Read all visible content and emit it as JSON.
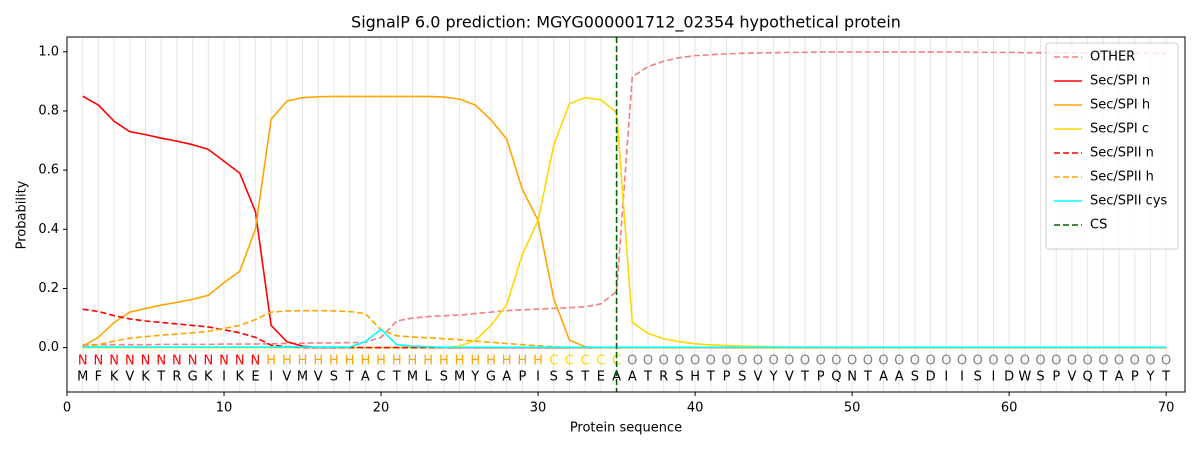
{
  "chart_data": {
    "type": "line",
    "title": "SignalP 6.0 prediction: MGYG000001712_02354 hypothetical protein",
    "xlabel": "Protein sequence",
    "ylabel": "Probability",
    "x": [
      1,
      2,
      3,
      4,
      5,
      6,
      7,
      8,
      9,
      10,
      11,
      12,
      13,
      14,
      15,
      16,
      17,
      18,
      19,
      20,
      21,
      22,
      23,
      24,
      25,
      26,
      27,
      28,
      29,
      30,
      31,
      32,
      33,
      34,
      35,
      36,
      37,
      38,
      39,
      40,
      41,
      42,
      43,
      44,
      45,
      46,
      47,
      48,
      49,
      50,
      51,
      52,
      53,
      54,
      55,
      56,
      57,
      58,
      59,
      60,
      61,
      62,
      63,
      64,
      65,
      66,
      67,
      68,
      69,
      70
    ],
    "xlim": [
      0,
      71.2
    ],
    "ylim": [
      -0.15,
      1.05
    ],
    "xticks": [
      0,
      10,
      20,
      30,
      40,
      50,
      60,
      70
    ],
    "yticks": [
      {
        "value": 0,
        "label": "0.0"
      },
      0.2,
      0.4,
      0.6,
      0.8,
      {
        "value": 1,
        "label": "1.0"
      }
    ],
    "grid": true,
    "legend": "upper right",
    "series": [
      {
        "name": "OTHER",
        "color": "#f08080",
        "style": "dashed",
        "values": [
          0.01,
          0.01,
          0.01,
          0.01,
          0.01,
          0.011,
          0.011,
          0.011,
          0.011,
          0.012,
          0.012,
          0.012,
          0.013,
          0.014,
          0.015,
          0.016,
          0.016,
          0.017,
          0.018,
          0.035,
          0.09,
          0.1,
          0.105,
          0.108,
          0.11,
          0.115,
          0.12,
          0.125,
          0.128,
          0.13,
          0.133,
          0.135,
          0.138,
          0.148,
          0.19,
          0.915,
          0.95,
          0.968,
          0.98,
          0.987,
          0.99,
          0.993,
          0.995,
          0.996,
          0.997,
          0.998,
          0.998,
          0.999,
          0.999,
          0.999,
          0.999,
          0.999,
          0.999,
          0.999,
          0.999,
          0.999,
          0.999,
          0.998,
          0.998,
          0.998,
          0.997,
          0.997,
          0.997,
          0.996,
          0.996,
          0.996,
          0.995,
          0.995,
          0.995,
          0.995
        ]
      },
      {
        "name": "Sec/SPI n",
        "color": "#ff0000",
        "style": "solid",
        "values": [
          0.85,
          0.82,
          0.765,
          0.73,
          0.72,
          0.708,
          0.698,
          0.686,
          0.67,
          0.63,
          0.59,
          0.46,
          0.075,
          0.02,
          0.005,
          0,
          0,
          0,
          0,
          0,
          0,
          0,
          0,
          0,
          0,
          0,
          0,
          0,
          0,
          0,
          0,
          0,
          0,
          0,
          0,
          0,
          0,
          0,
          0,
          0,
          0,
          0,
          0,
          0,
          0,
          0,
          0,
          0,
          0,
          0,
          0,
          0,
          0,
          0,
          0,
          0,
          0,
          0,
          0,
          0,
          0,
          0,
          0,
          0,
          0,
          0,
          0,
          0,
          0,
          0
        ]
      },
      {
        "name": "Sec/SPI h",
        "color": "#ffa500",
        "style": "solid",
        "values": [
          0.005,
          0.035,
          0.085,
          0.12,
          0.132,
          0.144,
          0.153,
          0.163,
          0.177,
          0.22,
          0.258,
          0.4,
          0.772,
          0.833,
          0.845,
          0.848,
          0.849,
          0.849,
          0.849,
          0.849,
          0.849,
          0.849,
          0.849,
          0.847,
          0.84,
          0.82,
          0.77,
          0.705,
          0.535,
          0.43,
          0.165,
          0.025,
          0.003,
          0,
          0,
          0,
          0,
          0,
          0,
          0,
          0,
          0,
          0,
          0,
          0,
          0,
          0,
          0,
          0,
          0,
          0,
          0,
          0,
          0,
          0,
          0,
          0,
          0,
          0,
          0,
          0,
          0,
          0,
          0,
          0,
          0,
          0,
          0,
          0,
          0
        ]
      },
      {
        "name": "Sec/SPI c",
        "color": "#ffd700",
        "style": "solid",
        "values": [
          0,
          0,
          0,
          0,
          0,
          0,
          0,
          0,
          0,
          0,
          0,
          0,
          0,
          0,
          0,
          0,
          0,
          0,
          0,
          0,
          0,
          0,
          0,
          0,
          0.005,
          0.025,
          0.075,
          0.145,
          0.315,
          0.43,
          0.685,
          0.825,
          0.845,
          0.838,
          0.795,
          0.085,
          0.048,
          0.03,
          0.02,
          0.013,
          0.009,
          0.007,
          0.005,
          0.004,
          0.003,
          0.002,
          0.002,
          0.002,
          0.002,
          0.002,
          0.001,
          0.001,
          0.001,
          0.001,
          0.001,
          0.001,
          0.001,
          0.001,
          0.001,
          0.001,
          0.001,
          0.001,
          0.001,
          0.001,
          0.001,
          0.001,
          0.001,
          0.001,
          0.001,
          0.001
        ]
      },
      {
        "name": "Sec/SPII n",
        "color": "#ff0000",
        "style": "dashed",
        "values": [
          0.13,
          0.122,
          0.108,
          0.097,
          0.09,
          0.085,
          0.08,
          0.075,
          0.07,
          0.06,
          0.05,
          0.035,
          0.008,
          0.003,
          0,
          0,
          0,
          0,
          0,
          0,
          0,
          0,
          0,
          0,
          0,
          0,
          0,
          0,
          0,
          0,
          0,
          0,
          0,
          0,
          0,
          0,
          0,
          0,
          0,
          0,
          0,
          0,
          0,
          0,
          0,
          0,
          0,
          0,
          0,
          0,
          0,
          0,
          0,
          0,
          0,
          0,
          0,
          0,
          0,
          0,
          0,
          0,
          0,
          0,
          0,
          0,
          0,
          0,
          0,
          0
        ]
      },
      {
        "name": "Sec/SPII h",
        "color": "#ffa500",
        "style": "dashed",
        "values": [
          0.002,
          0.01,
          0.022,
          0.032,
          0.037,
          0.042,
          0.046,
          0.05,
          0.055,
          0.065,
          0.075,
          0.095,
          0.12,
          0.124,
          0.125,
          0.125,
          0.124,
          0.122,
          0.115,
          0.06,
          0.04,
          0.036,
          0.033,
          0.03,
          0.027,
          0.022,
          0.018,
          0.014,
          0.01,
          0.006,
          0.003,
          0.001,
          0,
          0,
          0,
          0,
          0,
          0,
          0,
          0,
          0,
          0,
          0,
          0,
          0,
          0,
          0,
          0,
          0,
          0,
          0,
          0,
          0,
          0,
          0,
          0,
          0,
          0,
          0,
          0,
          0,
          0,
          0,
          0,
          0,
          0,
          0,
          0,
          0,
          0
        ]
      },
      {
        "name": "Sec/SPII cys",
        "color": "#00ffff",
        "style": "solid",
        "values": [
          0.002,
          0.002,
          0.002,
          0.002,
          0.002,
          0.002,
          0.002,
          0.002,
          0.002,
          0.002,
          0.002,
          0.002,
          0.002,
          0.002,
          0.002,
          0.002,
          0.002,
          0.002,
          0.02,
          0.062,
          0.01,
          0.005,
          0.003,
          0.001,
          0.001,
          0.001,
          0.001,
          0.001,
          0.001,
          0.001,
          0.001,
          0.001,
          0.001,
          0.001,
          0.001,
          0.001,
          0.001,
          0.001,
          0.001,
          0.001,
          0.001,
          0.001,
          0.001,
          0.001,
          0.001,
          0.001,
          0.001,
          0.001,
          0.001,
          0.001,
          0.001,
          0.001,
          0.001,
          0.001,
          0.001,
          0.001,
          0.001,
          0.001,
          0.001,
          0.001,
          0.001,
          0.001,
          0.001,
          0.001,
          0.001,
          0.001,
          0.001,
          0.001,
          0.001,
          0.001
        ]
      }
    ],
    "cs": {
      "name": "CS",
      "x": 35,
      "color": "#006400"
    },
    "regions": [
      "N",
      "N",
      "N",
      "N",
      "N",
      "N",
      "N",
      "N",
      "N",
      "N",
      "N",
      "N",
      "H",
      "H",
      "H",
      "H",
      "H",
      "H",
      "H",
      "H",
      "H",
      "H",
      "H",
      "H",
      "H",
      "H",
      "H",
      "H",
      "H",
      "H",
      "C",
      "C",
      "C",
      "C",
      "C",
      "O",
      "O",
      "O",
      "O",
      "O",
      "O",
      "O",
      "O",
      "O",
      "O",
      "O",
      "O",
      "O",
      "O",
      "O",
      "O",
      "O",
      "O",
      "O",
      "O",
      "O",
      "O",
      "O",
      "O",
      "O",
      "O",
      "O",
      "O",
      "O",
      "O",
      "O",
      "O",
      "O",
      "O",
      "O"
    ],
    "region_colors": {
      "N": "#ff0000",
      "H": "#ffa500",
      "C": "#ffd700",
      "O": "#808080"
    },
    "residues": [
      "M",
      "F",
      "K",
      "V",
      "K",
      "T",
      "R",
      "G",
      "K",
      "I",
      "K",
      "E",
      "I",
      "V",
      "M",
      "V",
      "S",
      "T",
      "A",
      "C",
      "T",
      "M",
      "L",
      "S",
      "M",
      "Y",
      "G",
      "A",
      "P",
      "I",
      "S",
      "S",
      "T",
      "E",
      "A",
      "A",
      "T",
      "R",
      "S",
      "H",
      "T",
      "P",
      "S",
      "V",
      "Y",
      "V",
      "T",
      "P",
      "Q",
      "N",
      "T",
      "A",
      "A",
      "S",
      "D",
      "I",
      "I",
      "S",
      "I",
      "D",
      "W",
      "S",
      "P",
      "V",
      "Q",
      "T",
      "A",
      "P",
      "Y",
      "T"
    ]
  }
}
